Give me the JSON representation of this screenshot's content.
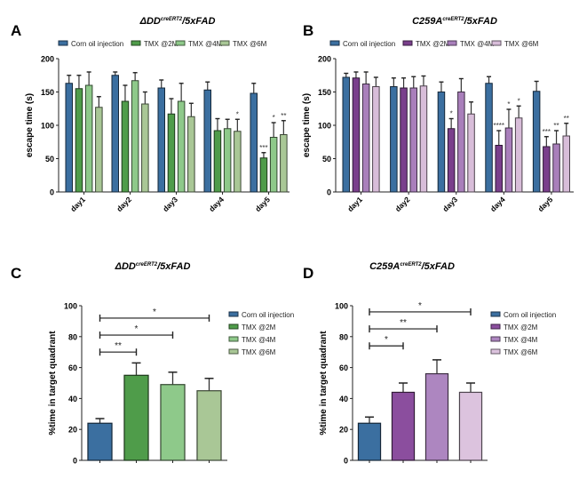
{
  "figure": {
    "panels": [
      "A",
      "B",
      "C",
      "D"
    ]
  },
  "chart_data": [
    {
      "panel": "A",
      "type": "bar",
      "title_main": "ΔDD",
      "title_sup": "creERT2",
      "title_rest": "/5xFAD",
      "xlabel": "",
      "ylabel": "escape time (s)",
      "ylim": [
        0,
        200
      ],
      "yticks": [
        0,
        50,
        100,
        150,
        200
      ],
      "categories": [
        "day1",
        "day2",
        "day3",
        "day4",
        "day5"
      ],
      "legend_position": "top",
      "series": [
        {
          "name": "Corn oil injection",
          "color": "#3b6fa0",
          "values": [
            163,
            175,
            156,
            153,
            148
          ],
          "errors": [
            12,
            5,
            12,
            12,
            15
          ],
          "sig": [
            "",
            "",
            "",
            "",
            ""
          ]
        },
        {
          "name": "TMX @2M",
          "color": "#4f9c4a",
          "values": [
            155,
            136,
            117,
            92,
            51
          ],
          "errors": [
            20,
            24,
            23,
            18,
            8
          ],
          "sig": [
            "",
            "",
            "",
            "",
            "***"
          ]
        },
        {
          "name": "TMX @4M",
          "color": "#8ec98a",
          "values": [
            160,
            167,
            136,
            95,
            82
          ],
          "errors": [
            20,
            12,
            27,
            14,
            22
          ],
          "sig": [
            "",
            "",
            "",
            "",
            "*"
          ]
        },
        {
          "name": "TMX @6M",
          "color": "#a9c796",
          "values": [
            127,
            132,
            113,
            91,
            86
          ],
          "errors": [
            16,
            18,
            20,
            18,
            21
          ],
          "sig": [
            "",
            "",
            "",
            "*",
            "**"
          ]
        }
      ]
    },
    {
      "panel": "B",
      "type": "bar",
      "title_main": "C259A",
      "title_sup": "creERT2",
      "title_rest": "/5xFAD",
      "xlabel": "",
      "ylabel": "escape time (s)",
      "ylim": [
        0,
        200
      ],
      "yticks": [
        0,
        50,
        100,
        150,
        200
      ],
      "categories": [
        "day1",
        "day2",
        "day3",
        "day4",
        "day5"
      ],
      "legend_position": "top",
      "series": [
        {
          "name": "Corn oil injection",
          "color": "#3b6fa0",
          "values": [
            172,
            158,
            150,
            163,
            151
          ],
          "errors": [
            6,
            13,
            15,
            10,
            15
          ],
          "sig": [
            "",
            "",
            "",
            "",
            ""
          ]
        },
        {
          "name": "TMX @2M",
          "color": "#7a3f8c",
          "values": [
            171,
            156,
            95,
            70,
            68
          ],
          "errors": [
            9,
            15,
            15,
            22,
            15
          ],
          "sig": [
            "",
            "",
            "*",
            "****",
            "***"
          ]
        },
        {
          "name": "TMX @4M",
          "color": "#a97fbb",
          "values": [
            162,
            156,
            150,
            96,
            72
          ],
          "errors": [
            18,
            17,
            20,
            28,
            20
          ],
          "sig": [
            "",
            "",
            "",
            "*",
            "**"
          ]
        },
        {
          "name": "TMX @6M",
          "color": "#d8bdd9",
          "values": [
            158,
            159,
            117,
            111,
            84
          ],
          "errors": [
            14,
            15,
            18,
            18,
            19
          ],
          "sig": [
            "",
            "",
            "",
            "*",
            "**"
          ]
        }
      ]
    },
    {
      "panel": "C",
      "type": "bar",
      "title_main": "ΔDD",
      "title_sup": "creERT2",
      "title_rest": "/5xFAD",
      "xlabel": "",
      "ylabel": "%time in target quadrant",
      "ylim": [
        0,
        100
      ],
      "yticks": [
        0,
        20,
        40,
        60,
        80,
        100
      ],
      "legend_position": "right",
      "categories": [
        "Corn oil injection",
        "TMX @2M",
        "TMX @4M",
        "TMX @6M"
      ],
      "colors": [
        "#3b6fa0",
        "#4f9c4a",
        "#8ec98a",
        "#a9c796"
      ],
      "values": [
        24,
        55,
        49,
        45
      ],
      "errors": [
        3,
        8,
        8,
        8
      ],
      "brackets": [
        {
          "from": 0,
          "to": 3,
          "y": 92,
          "label": "*"
        },
        {
          "from": 0,
          "to": 2,
          "y": 81,
          "label": "*"
        },
        {
          "from": 0,
          "to": 1,
          "y": 70,
          "label": "**"
        }
      ]
    },
    {
      "panel": "D",
      "type": "bar",
      "title_main": "C259A",
      "title_sup": "creERT2",
      "title_rest": "/5xFAD",
      "xlabel": "",
      "ylabel": "%time in target quadrant",
      "ylim": [
        0,
        100
      ],
      "yticks": [
        0,
        20,
        40,
        60,
        80,
        100
      ],
      "legend_position": "right",
      "categories": [
        "Corn oil injection",
        "TMX @2M",
        "TMX @4M",
        "TMX @6M"
      ],
      "colors": [
        "#3b6fa0",
        "#8b4e9e",
        "#ad86c0",
        "#dcc3de"
      ],
      "values": [
        24,
        44,
        56,
        44
      ],
      "errors": [
        4,
        6,
        9,
        6
      ],
      "brackets": [
        {
          "from": 0,
          "to": 3,
          "y": 96,
          "label": "*"
        },
        {
          "from": 0,
          "to": 2,
          "y": 85,
          "label": "**"
        },
        {
          "from": 0,
          "to": 1,
          "y": 74,
          "label": "*"
        }
      ]
    }
  ]
}
